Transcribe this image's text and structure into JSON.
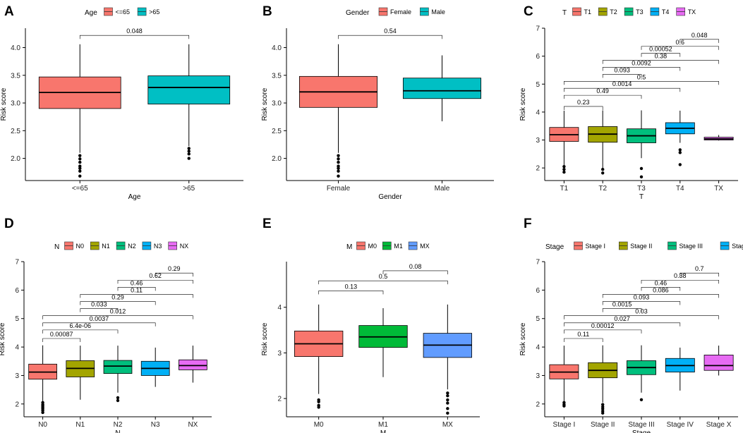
{
  "chart_data": [
    {
      "panel": "A",
      "type": "box",
      "ylabel": "Risk score",
      "xlabel": "Age",
      "legend_title": "Age",
      "ylim": [
        1.6,
        4.35
      ],
      "yticks": [
        2.0,
        2.5,
        3.0,
        3.5,
        4.0
      ],
      "ytick_labels": [
        "2.0",
        "2.5",
        "3.0",
        "3.5",
        "4.0"
      ],
      "groups": [
        {
          "name": "<=65",
          "color": "#F8766D",
          "whisker_low": 2.1,
          "q1": 2.9,
          "median": 3.19,
          "q3": 3.47,
          "whisker_high": 4.06,
          "outliers": [
            2.05,
            1.99,
            1.93,
            1.86,
            1.82,
            1.77,
            1.68
          ]
        },
        {
          "name": ">65",
          "color": "#00BFC4",
          "whisker_low": 2.22,
          "q1": 2.98,
          "median": 3.28,
          "q3": 3.49,
          "whisker_high": 4.06,
          "outliers": [
            2.18,
            2.13,
            2.08,
            2.0
          ]
        }
      ],
      "comparisons": [
        {
          "from": 0,
          "to": 1,
          "label": "0.048",
          "y": 4.22
        }
      ]
    },
    {
      "panel": "B",
      "type": "box",
      "ylabel": "Risk score",
      "xlabel": "Gender",
      "legend_title": "Gender",
      "ylim": [
        1.6,
        4.35
      ],
      "yticks": [
        2.0,
        2.5,
        3.0,
        3.5,
        4.0
      ],
      "ytick_labels": [
        "2.0",
        "2.5",
        "3.0",
        "3.5",
        "4.0"
      ],
      "groups": [
        {
          "name": "Female",
          "color": "#F8766D",
          "whisker_low": 2.1,
          "q1": 2.92,
          "median": 3.2,
          "q3": 3.48,
          "whisker_high": 4.06,
          "outliers": [
            2.05,
            1.99,
            1.93,
            1.86,
            1.82,
            1.77,
            1.68
          ]
        },
        {
          "name": "Male",
          "color": "#00BFC4",
          "whisker_low": 2.67,
          "q1": 3.08,
          "median": 3.22,
          "q3": 3.45,
          "whisker_high": 3.86,
          "outliers": []
        }
      ],
      "comparisons": [
        {
          "from": 0,
          "to": 1,
          "label": "0.54",
          "y": 4.22
        }
      ]
    },
    {
      "panel": "C",
      "type": "box",
      "ylabel": "Risk score",
      "xlabel": "T",
      "legend_title": "T",
      "ylim": [
        1.55,
        7.0
      ],
      "yticks": [
        2,
        3,
        4,
        5,
        6,
        7
      ],
      "ytick_labels": [
        "2",
        "3",
        "4",
        "5",
        "6",
        "7"
      ],
      "groups": [
        {
          "name": "T1",
          "color": "#F8766D",
          "whisker_low": 2.1,
          "q1": 2.95,
          "median": 3.19,
          "q3": 3.45,
          "whisker_high": 4.05,
          "outliers": [
            2.05,
            1.95,
            1.85
          ]
        },
        {
          "name": "T2",
          "color": "#A3A500",
          "whisker_low": 2.0,
          "q1": 2.92,
          "median": 3.21,
          "q3": 3.48,
          "whisker_high": 4.06,
          "outliers": [
            1.95,
            1.82
          ]
        },
        {
          "name": "T3",
          "color": "#00BF7D",
          "whisker_low": 2.35,
          "q1": 2.9,
          "median": 3.15,
          "q3": 3.4,
          "whisker_high": 4.06,
          "outliers": [
            1.98,
            1.68
          ]
        },
        {
          "name": "T4",
          "color": "#00B0F6",
          "whisker_low": 2.9,
          "q1": 3.22,
          "median": 3.42,
          "q3": 3.62,
          "whisker_high": 4.05,
          "outliers": [
            2.65,
            2.55,
            2.12
          ]
        },
        {
          "name": "TX",
          "color": "#E76BF3",
          "whisker_low": 2.98,
          "q1": 3.0,
          "median": 3.04,
          "q3": 3.1,
          "whisker_high": 3.18,
          "outliers": []
        }
      ],
      "comparisons": [
        {
          "from": 0,
          "to": 1,
          "label": "0.23",
          "y": 4.2
        },
        {
          "from": 0,
          "to": 2,
          "label": "0.49",
          "y": 4.6
        },
        {
          "from": 0,
          "to": 3,
          "label": "0.0014",
          "y": 4.85
        },
        {
          "from": 0,
          "to": 4,
          "label": "0.5",
          "y": 5.1
        },
        {
          "from": 1,
          "to": 2,
          "label": "0.093",
          "y": 5.35
        },
        {
          "from": 1,
          "to": 3,
          "label": "0.0092",
          "y": 5.6
        },
        {
          "from": 1,
          "to": 4,
          "label": "0.38",
          "y": 5.85
        },
        {
          "from": 2,
          "to": 3,
          "label": "0.00052",
          "y": 6.1
        },
        {
          "from": 2,
          "to": 4,
          "label": "0.6",
          "y": 6.35
        },
        {
          "from": 3,
          "to": 4,
          "label": "0.048",
          "y": 6.6
        }
      ]
    },
    {
      "panel": "D",
      "type": "box",
      "ylabel": "Risk score",
      "xlabel": "N",
      "legend_title": "N",
      "ylim": [
        1.55,
        7.0
      ],
      "yticks": [
        2,
        3,
        4,
        5,
        6,
        7
      ],
      "ytick_labels": [
        "2",
        "3",
        "4",
        "5",
        "6",
        "7"
      ],
      "groups": [
        {
          "name": "N0",
          "color": "#F8766D",
          "whisker_low": 2.1,
          "q1": 2.87,
          "median": 3.12,
          "q3": 3.4,
          "whisker_high": 4.06,
          "outliers": [
            2.05,
            1.98,
            1.93,
            1.88,
            1.83,
            1.77,
            1.7
          ]
        },
        {
          "name": "N1",
          "color": "#A3A500",
          "whisker_low": 2.15,
          "q1": 2.95,
          "median": 3.25,
          "q3": 3.52,
          "whisker_high": 4.05,
          "outliers": []
        },
        {
          "name": "N2",
          "color": "#00BF7D",
          "whisker_low": 2.4,
          "q1": 3.07,
          "median": 3.33,
          "q3": 3.53,
          "whisker_high": 4.05,
          "outliers": [
            2.22,
            2.12
          ]
        },
        {
          "name": "N3",
          "color": "#00B0F6",
          "whisker_low": 2.6,
          "q1": 3.0,
          "median": 3.25,
          "q3": 3.5,
          "whisker_high": 3.98,
          "outliers": []
        },
        {
          "name": "NX",
          "color": "#E76BF3",
          "whisker_low": 2.75,
          "q1": 3.2,
          "median": 3.35,
          "q3": 3.55,
          "whisker_high": 4.05,
          "outliers": []
        }
      ],
      "comparisons": [
        {
          "from": 0,
          "to": 1,
          "label": "0.00087",
          "y": 4.3
        },
        {
          "from": 0,
          "to": 2,
          "label": "6.4e-06",
          "y": 4.6
        },
        {
          "from": 0,
          "to": 3,
          "label": "0.0037",
          "y": 4.85
        },
        {
          "from": 0,
          "to": 4,
          "label": "0.012",
          "y": 5.1
        },
        {
          "from": 1,
          "to": 2,
          "label": "0.033",
          "y": 5.35
        },
        {
          "from": 1,
          "to": 3,
          "label": "0.29",
          "y": 5.6
        },
        {
          "from": 1,
          "to": 4,
          "label": "0.11",
          "y": 5.85
        },
        {
          "from": 2,
          "to": 3,
          "label": "0.46",
          "y": 6.1
        },
        {
          "from": 2,
          "to": 4,
          "label": "0.62",
          "y": 6.35
        },
        {
          "from": 3,
          "to": 4,
          "label": "0.29",
          "y": 6.6
        }
      ]
    },
    {
      "panel": "E",
      "type": "box",
      "ylabel": "Risk score",
      "xlabel": "M",
      "legend_title": "M",
      "ylim": [
        1.6,
        5.0
      ],
      "yticks": [
        2,
        3,
        4
      ],
      "ytick_labels": [
        "2",
        "3",
        "4"
      ],
      "groups": [
        {
          "name": "M0",
          "color": "#F8766D",
          "whisker_low": 2.1,
          "q1": 2.92,
          "median": 3.2,
          "q3": 3.48,
          "whisker_high": 4.06,
          "outliers": [
            1.97,
            1.93,
            1.85,
            1.81
          ]
        },
        {
          "name": "M1",
          "color": "#00BA38",
          "whisker_low": 2.47,
          "q1": 3.12,
          "median": 3.35,
          "q3": 3.6,
          "whisker_high": 3.98,
          "outliers": []
        },
        {
          "name": "MX",
          "color": "#619CFF",
          "whisker_low": 2.2,
          "q1": 2.9,
          "median": 3.17,
          "q3": 3.43,
          "whisker_high": 4.06,
          "outliers": [
            2.12,
            2.06,
            1.97,
            1.9,
            1.78,
            1.68
          ]
        }
      ],
      "comparisons": [
        {
          "from": 0,
          "to": 1,
          "label": "0.13",
          "y": 4.36
        },
        {
          "from": 0,
          "to": 2,
          "label": "0.5",
          "y": 4.58
        },
        {
          "from": 1,
          "to": 2,
          "label": "0.08",
          "y": 4.8
        }
      ]
    },
    {
      "panel": "F",
      "type": "box",
      "ylabel": "Risk score",
      "xlabel": "Stage",
      "legend_title": "Stage",
      "ylim": [
        1.55,
        7.0
      ],
      "yticks": [
        2,
        3,
        4,
        5,
        6,
        7
      ],
      "ytick_labels": [
        "2",
        "3",
        "4",
        "5",
        "6",
        "7"
      ],
      "groups": [
        {
          "name": "Stage I",
          "color": "#F8766D",
          "whisker_low": 2.1,
          "q1": 2.88,
          "median": 3.12,
          "q3": 3.38,
          "whisker_high": 4.05,
          "outliers": [
            2.05,
            1.98,
            1.93
          ]
        },
        {
          "name": "Stage II",
          "color": "#A3A500",
          "whisker_low": 2.05,
          "q1": 2.92,
          "median": 3.18,
          "q3": 3.45,
          "whisker_high": 4.06,
          "outliers": [
            1.98,
            1.9,
            1.83,
            1.75,
            1.68
          ]
        },
        {
          "name": "Stage III",
          "color": "#00BF7D",
          "whisker_low": 2.4,
          "q1": 3.03,
          "median": 3.28,
          "q3": 3.52,
          "whisker_high": 4.06,
          "outliers": [
            2.15
          ]
        },
        {
          "name": "Stage IV",
          "color": "#00B0F6",
          "whisker_low": 2.47,
          "q1": 3.12,
          "median": 3.35,
          "q3": 3.6,
          "whisker_high": 3.98,
          "outliers": []
        },
        {
          "name": "Stage X",
          "color": "#E76BF3",
          "whisker_low": 3.0,
          "q1": 3.18,
          "median": 3.35,
          "q3": 3.72,
          "whisker_high": 4.05,
          "outliers": []
        }
      ],
      "comparisons": [
        {
          "from": 0,
          "to": 1,
          "label": "0.11",
          "y": 4.3
        },
        {
          "from": 0,
          "to": 2,
          "label": "0.00012",
          "y": 4.6
        },
        {
          "from": 0,
          "to": 3,
          "label": "0.027",
          "y": 4.85
        },
        {
          "from": 0,
          "to": 4,
          "label": "0.03",
          "y": 5.1
        },
        {
          "from": 1,
          "to": 2,
          "label": "0.0015",
          "y": 5.35
        },
        {
          "from": 1,
          "to": 3,
          "label": "0.093",
          "y": 5.6
        },
        {
          "from": 1,
          "to": 4,
          "label": "0.086",
          "y": 5.85
        },
        {
          "from": 2,
          "to": 3,
          "label": "0.46",
          "y": 6.1
        },
        {
          "from": 2,
          "to": 4,
          "label": "0.38",
          "y": 6.35
        },
        {
          "from": 3,
          "to": 4,
          "label": "0.7",
          "y": 6.6
        }
      ]
    }
  ]
}
